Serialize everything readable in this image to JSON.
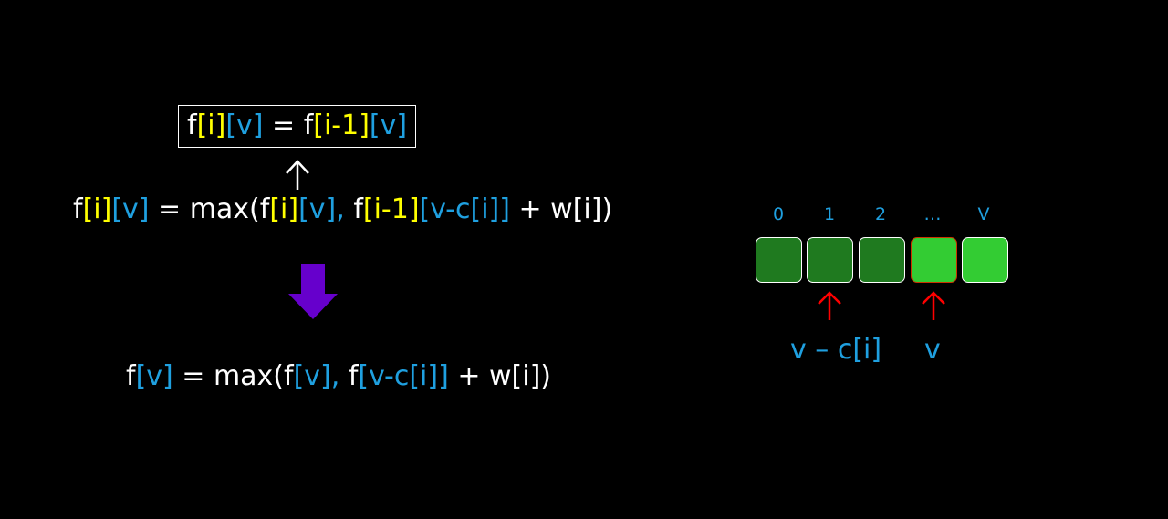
{
  "colors": {
    "background": "#000000",
    "text": "#ffffff",
    "index_i": "#ffff00",
    "index_v": "#1fa0e0",
    "arrow_down": "#6600cc",
    "pointer_red": "#ff0000",
    "cell_dark": "#1f7a1f",
    "cell_bright": "#33cc33"
  },
  "equations": {
    "top": [
      {
        "t": "f",
        "c": "w"
      },
      {
        "t": "[i]",
        "c": "y"
      },
      {
        "t": "[v]",
        "c": "b"
      },
      {
        "t": " = f",
        "c": "w"
      },
      {
        "t": "[i-1]",
        "c": "y"
      },
      {
        "t": "[v]",
        "c": "b"
      }
    ],
    "middle": [
      {
        "t": "f",
        "c": "w"
      },
      {
        "t": "[i]",
        "c": "y"
      },
      {
        "t": "[v]",
        "c": "b"
      },
      {
        "t": " = max(f",
        "c": "w"
      },
      {
        "t": "[i]",
        "c": "y"
      },
      {
        "t": "[v], ",
        "c": "b"
      },
      {
        "t": "f",
        "c": "w"
      },
      {
        "t": "[i-1]",
        "c": "y"
      },
      {
        "t": "[v-c[i]]",
        "c": "b"
      },
      {
        "t": " + w[i])",
        "c": "w"
      }
    ],
    "bottom": [
      {
        "t": "f",
        "c": "w"
      },
      {
        "t": "[v]",
        "c": "b"
      },
      {
        "t": " = max(f",
        "c": "w"
      },
      {
        "t": "[v], ",
        "c": "b"
      },
      {
        "t": "f",
        "c": "w"
      },
      {
        "t": "[v-c[i]]",
        "c": "b"
      },
      {
        "t": " + w[i])",
        "c": "w"
      }
    ]
  },
  "array": {
    "labels": [
      "0",
      "1",
      "2",
      "…",
      "V"
    ],
    "cells": [
      {
        "state": "dark"
      },
      {
        "state": "dark"
      },
      {
        "state": "dark"
      },
      {
        "state": "bright-highlight"
      },
      {
        "state": "bright"
      }
    ]
  },
  "pointers": {
    "left_label": "v – c[i]",
    "right_label": "v"
  }
}
